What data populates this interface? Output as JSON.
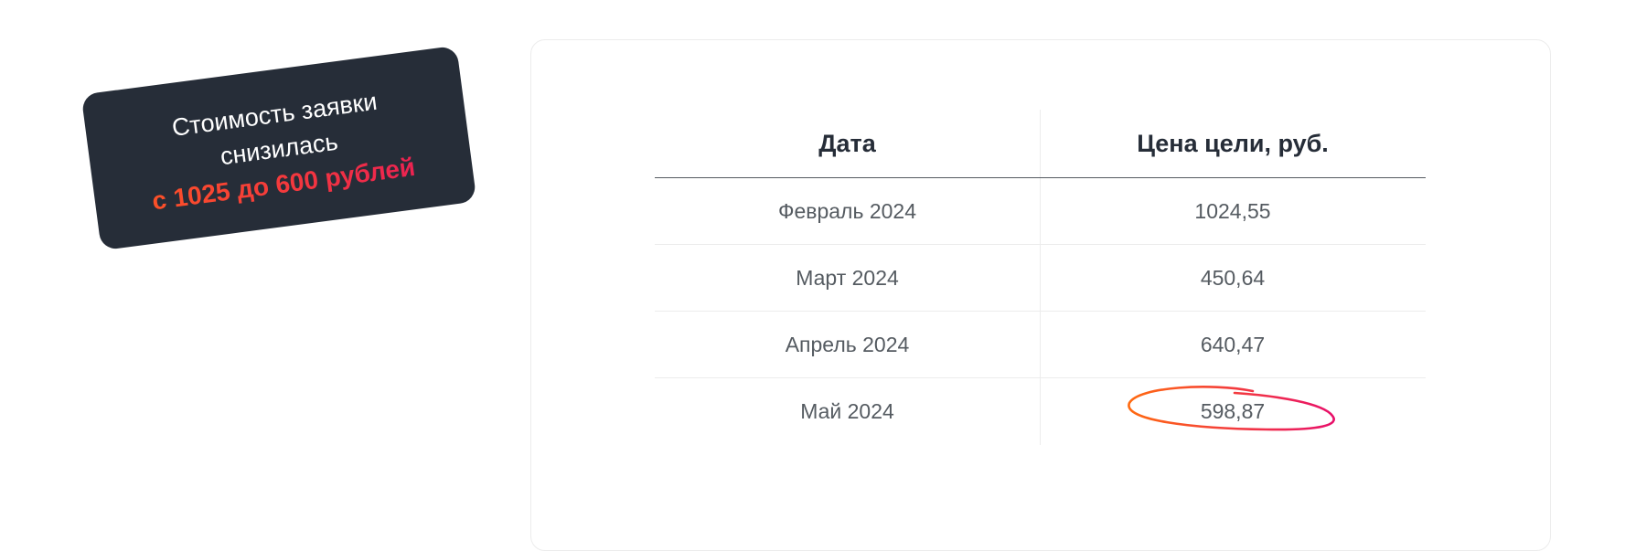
{
  "badge": {
    "line1": "Стоимость заявки",
    "line2": "снизилась",
    "highlight": "с 1025 до 600 рублей"
  },
  "table": {
    "headers": [
      "Дата",
      "Цена цели, руб."
    ],
    "rows": [
      [
        "Февраль 2024",
        "1024,55"
      ],
      [
        "Март 2024",
        "450,64"
      ],
      [
        "Апрель 2024",
        "640,47"
      ],
      [
        "Май 2024",
        "598,87"
      ]
    ]
  },
  "colors": {
    "badge_bg": "#262d38",
    "accent_start": "#ff5a1f",
    "accent_end": "#e8195a"
  }
}
